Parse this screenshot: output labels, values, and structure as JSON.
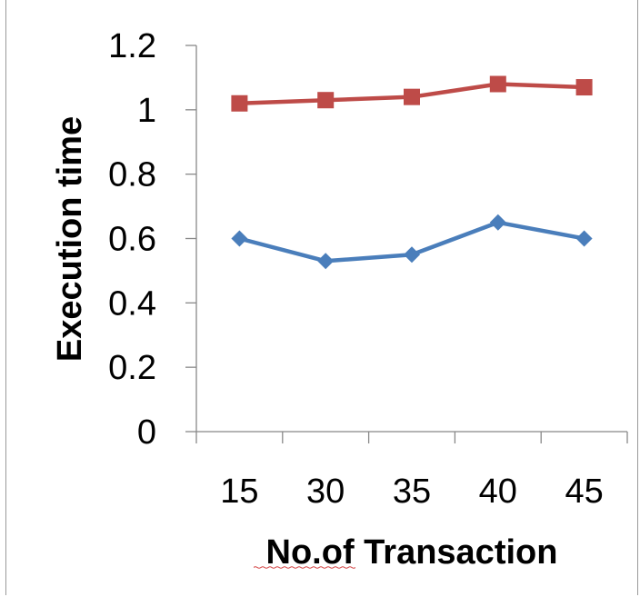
{
  "chart_data": {
    "type": "line",
    "title": "",
    "xlabel": "No.of Transaction",
    "ylabel": "Execution time",
    "categories": [
      "15",
      "30",
      "35",
      "40",
      "45"
    ],
    "ylim": [
      0,
      1.2
    ],
    "yticks": [
      "0",
      "0.2",
      "0.4",
      "0.6",
      "0.8",
      "1",
      "1.2"
    ],
    "grid": false,
    "legend": "none",
    "series": [
      {
        "color": "#4a7ebb",
        "marker": "diamond",
        "values": [
          0.6,
          0.53,
          0.55,
          0.65,
          0.6
        ]
      },
      {
        "color": "#be4b48",
        "marker": "square",
        "values": [
          1.02,
          1.03,
          1.04,
          1.08,
          1.07
        ]
      }
    ]
  }
}
